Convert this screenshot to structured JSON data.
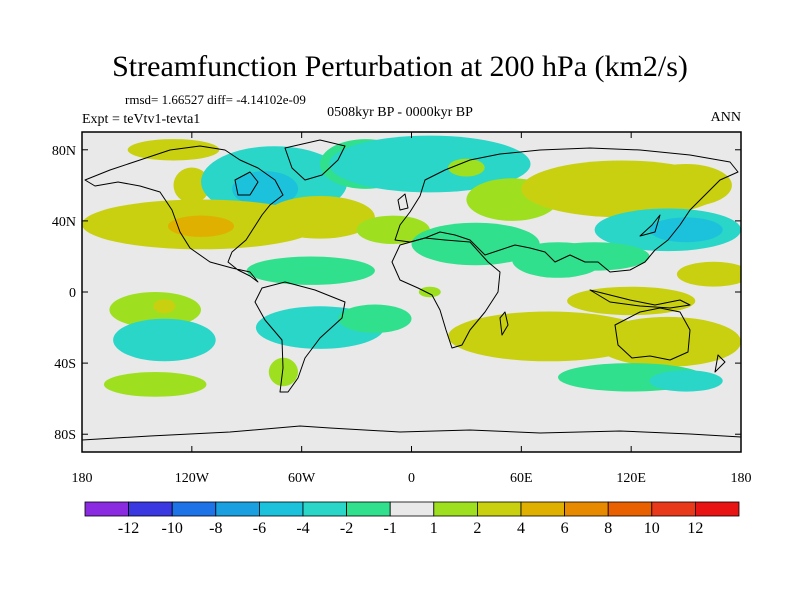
{
  "chart_data": {
    "type": "contour_map",
    "title": "Streamfunction Perturbation at 200 hPa (km2/s)",
    "rmsd_line": "rmsd= 1.66527 diff= -4.14102e-09",
    "center_label": "0508kyr BP - 0000kyr BP",
    "left_label": "Expt = teVtv1-tevta1",
    "right_label": "ANN",
    "x_ticks": [
      {
        "value": -180,
        "label": "180"
      },
      {
        "value": -120,
        "label": "120W"
      },
      {
        "value": -60,
        "label": "60W"
      },
      {
        "value": 0,
        "label": "0"
      },
      {
        "value": 60,
        "label": "60E"
      },
      {
        "value": 120,
        "label": "120E"
      },
      {
        "value": 180,
        "label": "180"
      }
    ],
    "y_ticks": [
      {
        "value": 80,
        "label": "80N"
      },
      {
        "value": 40,
        "label": "40N"
      },
      {
        "value": 0,
        "label": "0"
      },
      {
        "value": -40,
        "label": "40S"
      },
      {
        "value": -80,
        "label": "80S"
      }
    ],
    "xlim": [
      -180,
      180
    ],
    "ylim": [
      -90,
      90
    ],
    "colorbar": {
      "labels": [
        "-12",
        "-10",
        "-8",
        "-6",
        "-4",
        "-2",
        "-1",
        "1",
        "2",
        "4",
        "6",
        "8",
        "10",
        "12"
      ],
      "colors": [
        "#8a2be2",
        "#3a38e0",
        "#1e74e6",
        "#1aa0e0",
        "#1cc2dc",
        "#2ad6c8",
        "#30e08c",
        "#e9e9e9",
        "#9ee020",
        "#c8d010",
        "#e0b000",
        "#e88a00",
        "#e86000",
        "#e83a1a",
        "#e81414"
      ]
    },
    "anomalies": [
      {
        "lon": -130,
        "lat": 80,
        "rlon": 25,
        "rlat": 6,
        "value": 2
      },
      {
        "lon": -120,
        "lat": 60,
        "rlon": 10,
        "rlat": 10,
        "value": 2
      },
      {
        "lon": -75,
        "lat": 62,
        "rlon": 40,
        "rlat": 20,
        "value": -3
      },
      {
        "lon": -80,
        "lat": 58,
        "rlon": 18,
        "rlat": 10,
        "value": -5
      },
      {
        "lon": -25,
        "lat": 72,
        "rlon": 25,
        "rlat": 14,
        "value": -2
      },
      {
        "lon": 10,
        "lat": 72,
        "rlon": 55,
        "rlat": 16,
        "value": -2.5
      },
      {
        "lon": 20,
        "lat": 75,
        "rlon": 25,
        "rlat": 8,
        "value": -3.5
      },
      {
        "lon": 55,
        "lat": 52,
        "rlon": 25,
        "rlat": 12,
        "value": 1.5
      },
      {
        "lon": 30,
        "lat": 70,
        "rlon": 10,
        "rlat": 5,
        "value": 1.5
      },
      {
        "lon": 115,
        "lat": 58,
        "rlon": 55,
        "rlat": 16,
        "value": 2
      },
      {
        "lon": 150,
        "lat": 60,
        "rlon": 25,
        "rlat": 12,
        "value": 2.5
      },
      {
        "lon": 140,
        "lat": 35,
        "rlon": 40,
        "rlat": 12,
        "value": -3
      },
      {
        "lon": 150,
        "lat": 35,
        "rlon": 20,
        "rlat": 7,
        "value": -4.5
      },
      {
        "lon": -115,
        "lat": 38,
        "rlon": 65,
        "rlat": 14,
        "value": 2.5
      },
      {
        "lon": -115,
        "lat": 37,
        "rlon": 18,
        "rlat": 6,
        "value": 5
      },
      {
        "lon": -50,
        "lat": 42,
        "rlon": 30,
        "rlat": 12,
        "value": 2
      },
      {
        "lon": -10,
        "lat": 35,
        "rlon": 20,
        "rlat": 8,
        "value": 1.5
      },
      {
        "lon": 35,
        "lat": 27,
        "rlon": 35,
        "rlat": 12,
        "value": -2
      },
      {
        "lon": 80,
        "lat": 18,
        "rlon": 25,
        "rlat": 10,
        "value": -2
      },
      {
        "lon": 100,
        "lat": 20,
        "rlon": 30,
        "rlat": 8,
        "value": -1.5
      },
      {
        "lon": -55,
        "lat": 12,
        "rlon": 35,
        "rlat": 8,
        "value": -1.5
      },
      {
        "lon": 10,
        "lat": 0,
        "rlon": 6,
        "rlat": 3,
        "value": 1.5
      },
      {
        "lon": 120,
        "lat": -5,
        "rlon": 35,
        "rlat": 8,
        "value": 2
      },
      {
        "lon": 165,
        "lat": 10,
        "rlon": 20,
        "rlat": 7,
        "value": 2
      },
      {
        "lon": -50,
        "lat": -20,
        "rlon": 35,
        "rlat": 12,
        "value": -3
      },
      {
        "lon": -20,
        "lat": -15,
        "rlon": 20,
        "rlat": 8,
        "value": -2
      },
      {
        "lon": -140,
        "lat": -10,
        "rlon": 25,
        "rlat": 10,
        "value": 1.5
      },
      {
        "lon": -135,
        "lat": -8,
        "rlon": 6,
        "rlat": 4,
        "value": 3
      },
      {
        "lon": -135,
        "lat": -27,
        "rlon": 28,
        "rlat": 12,
        "value": -2.5
      },
      {
        "lon": -140,
        "lat": -28,
        "rlon": 10,
        "rlat": 4,
        "value": -4
      },
      {
        "lon": -140,
        "lat": -52,
        "rlon": 28,
        "rlat": 7,
        "value": 1.5
      },
      {
        "lon": 75,
        "lat": -25,
        "rlon": 55,
        "rlat": 14,
        "value": 3
      },
      {
        "lon": 140,
        "lat": -28,
        "rlon": 40,
        "rlat": 14,
        "value": 2.5
      },
      {
        "lon": 120,
        "lat": -48,
        "rlon": 40,
        "rlat": 8,
        "value": -2
      },
      {
        "lon": 150,
        "lat": -50,
        "rlon": 20,
        "rlat": 6,
        "value": -2.5
      },
      {
        "lon": -70,
        "lat": -45,
        "rlon": 8,
        "rlat": 8,
        "value": 1.5
      }
    ]
  }
}
